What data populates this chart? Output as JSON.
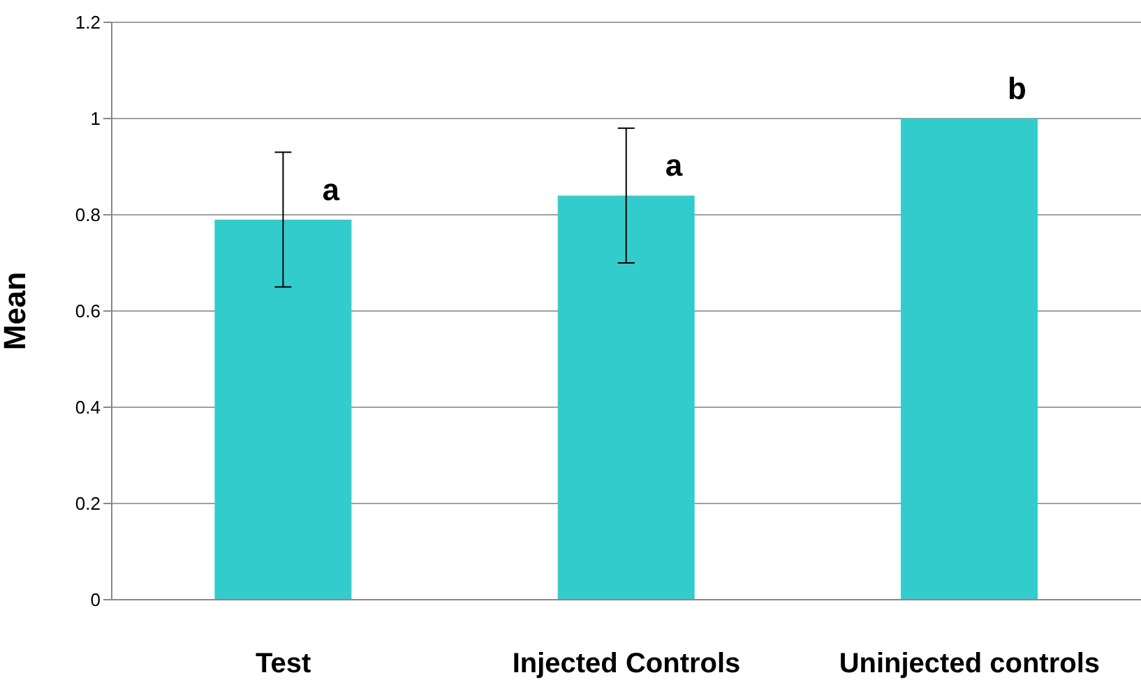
{
  "chart_data": {
    "type": "bar",
    "ylabel": "Mean",
    "categories": [
      "Test",
      "Injected Controls",
      "Uninjected controls"
    ],
    "values": [
      0.79,
      0.84,
      1.0
    ],
    "errors": [
      0.14,
      0.14,
      null
    ],
    "color": "#33cccc",
    "ylim": [
      0,
      1.2
    ],
    "yticks": [
      0,
      0.2,
      0.4,
      0.6,
      0.8,
      1,
      1.2
    ],
    "grid": "y",
    "legend": false,
    "annotations": [
      {
        "text": "a",
        "x": "Test",
        "y": 0.79
      },
      {
        "text": "a",
        "x": "Injected Controls",
        "y": 0.84
      },
      {
        "text": "b",
        "x": "Uninjected controls",
        "y": 1.0
      }
    ]
  }
}
